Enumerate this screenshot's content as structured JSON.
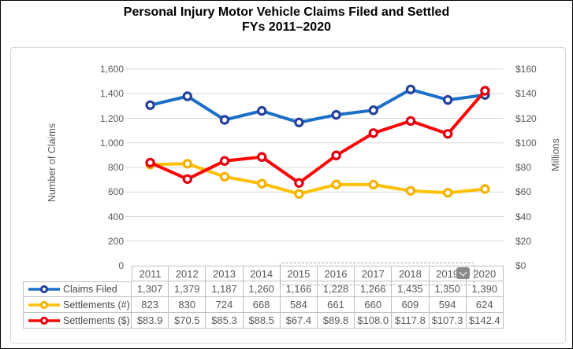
{
  "title": {
    "line1": "Personal Injury Motor Vehicle Claims Filed and Settled",
    "line2": "FYs 2011–2020"
  },
  "axes": {
    "left": {
      "title": "Number of Claims",
      "tick_labels": [
        "1,600",
        "1,400",
        "1,200",
        "1,000",
        "800",
        "600",
        "400",
        "200",
        "0"
      ],
      "range": [
        0,
        1600
      ],
      "step": 200
    },
    "right": {
      "title": "Millions",
      "tick_labels": [
        "$160",
        "$140",
        "$120",
        "$100",
        "$80",
        "$60",
        "$40",
        "$20",
        "$0"
      ],
      "range": [
        0,
        160
      ],
      "step": 20
    }
  },
  "chart_data": {
    "type": "line",
    "categories": [
      "2011",
      "2012",
      "2013",
      "2014",
      "2015",
      "2016",
      "2017",
      "2018",
      "2019",
      "2020"
    ],
    "series": [
      {
        "name": "Claims Filed",
        "axis": "left",
        "values": [
          1307,
          1379,
          1187,
          1260,
          1166,
          1228,
          1266,
          1435,
          1350,
          1390
        ],
        "labels": [
          "1,307",
          "1,379",
          "1,187",
          "1,260",
          "1,166",
          "1,228",
          "1,266",
          "1,435",
          "1,350",
          "1,390"
        ],
        "line_color": "#1B6FC8",
        "marker_color": "#27429B"
      },
      {
        "name": "Settlements (#)",
        "axis": "left",
        "values": [
          823,
          830,
          724,
          668,
          584,
          661,
          660,
          609,
          594,
          624
        ],
        "labels": [
          "823",
          "830",
          "724",
          "668",
          "584",
          "661",
          "660",
          "609",
          "594",
          "624"
        ],
        "line_color": "#FFC000",
        "marker_color": "#F5B200"
      },
      {
        "name": "Settlements ($)",
        "axis": "right",
        "values": [
          83.9,
          70.5,
          85.3,
          88.5,
          67.4,
          89.8,
          108.0,
          117.8,
          107.3,
          142.4
        ],
        "labels": [
          "$83.9",
          "$70.5",
          "$85.3",
          "$88.5",
          "$67.4",
          "$89.8",
          "$108.0",
          "$117.8",
          "$107.3",
          "$142.4"
        ],
        "line_color": "#FB0505",
        "marker_color": "#E3000F"
      }
    ],
    "ylim_left": [
      0,
      1600
    ],
    "ylim_right": [
      0,
      160
    ],
    "grid": true,
    "legend_position": "data-table-left"
  },
  "data_table": {
    "selection": {
      "columns": [
        "2015",
        "2016",
        "2017",
        "2018",
        "2019"
      ],
      "dropdown_icon": "chevron-down"
    }
  },
  "colors": {
    "gridline": "#D9D9D9",
    "table_border": "#BFBFBF",
    "tick_text": "#595959",
    "frame_border": "#D6D6D6",
    "dropdown_bg": "#8A8A8A"
  }
}
